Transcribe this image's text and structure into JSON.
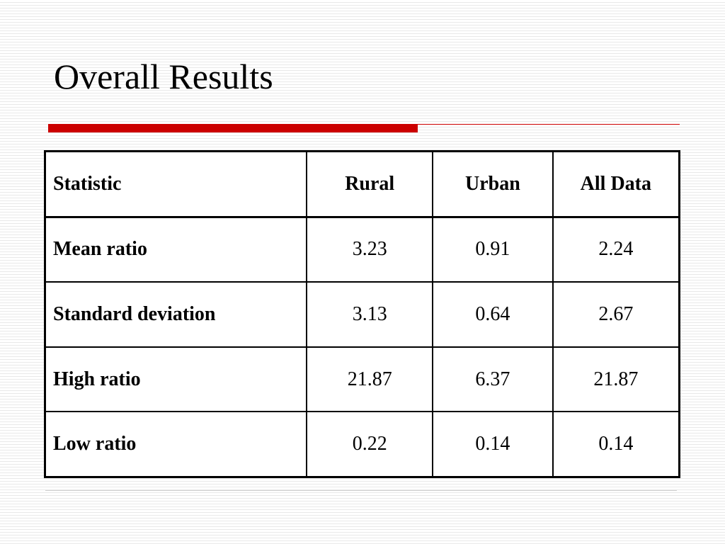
{
  "slide": {
    "title": "Overall Results",
    "colors": {
      "accent_rule": "#cc0000",
      "thin_rule": "#cc0000"
    }
  },
  "table": {
    "headers": [
      "Statistic",
      "Rural",
      "Urban",
      "All Data"
    ],
    "rows": [
      {
        "label": "Mean ratio",
        "rural": "3.23",
        "urban": "0.91",
        "all": "2.24"
      },
      {
        "label": "Standard deviation",
        "rural": "3.13",
        "urban": "0.64",
        "all": "2.67"
      },
      {
        "label": "High ratio",
        "rural": "21.87",
        "urban": "6.37",
        "all": "21.87"
      },
      {
        "label": "Low ratio",
        "rural": "0.22",
        "urban": "0.14",
        "all": "0.14"
      }
    ]
  }
}
